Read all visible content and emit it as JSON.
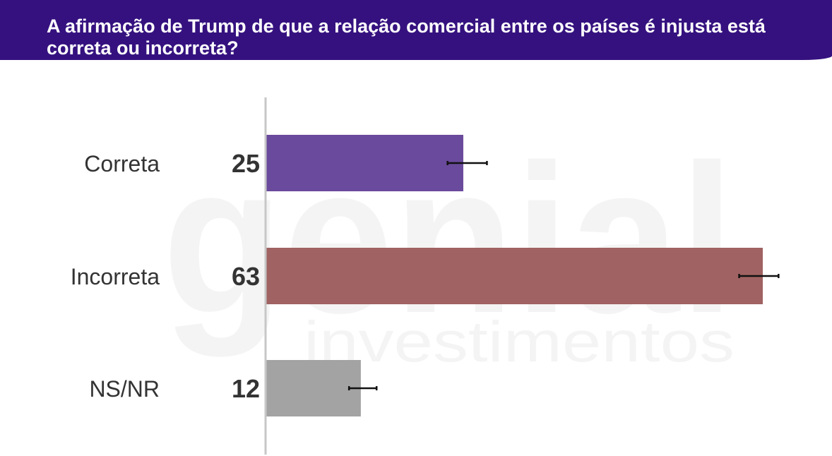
{
  "title": "A afirmação de Trump de que a relação comercial entre os países é injusta está correta ou incorreta?",
  "watermark": {
    "brand": "genial",
    "sub": "investimentos"
  },
  "colors": {
    "header_bg": "#35117f",
    "axis": "#c7c7c7",
    "error_bar": "#111111"
  },
  "chart_data": {
    "type": "bar",
    "orientation": "horizontal",
    "categories": [
      "Correta",
      "Incorreta",
      "NS/NR"
    ],
    "values": [
      25,
      63,
      12
    ],
    "value_labels": [
      "25",
      "63",
      "12"
    ],
    "error_ranges": [
      [
        23,
        28
      ],
      [
        60,
        65
      ],
      [
        10.5,
        14
      ]
    ],
    "bar_colors": [
      "#6a4a9c",
      "#a06262",
      "#a3a3a3"
    ],
    "xlim": [
      0,
      63
    ],
    "grid": false,
    "legend": "none"
  }
}
